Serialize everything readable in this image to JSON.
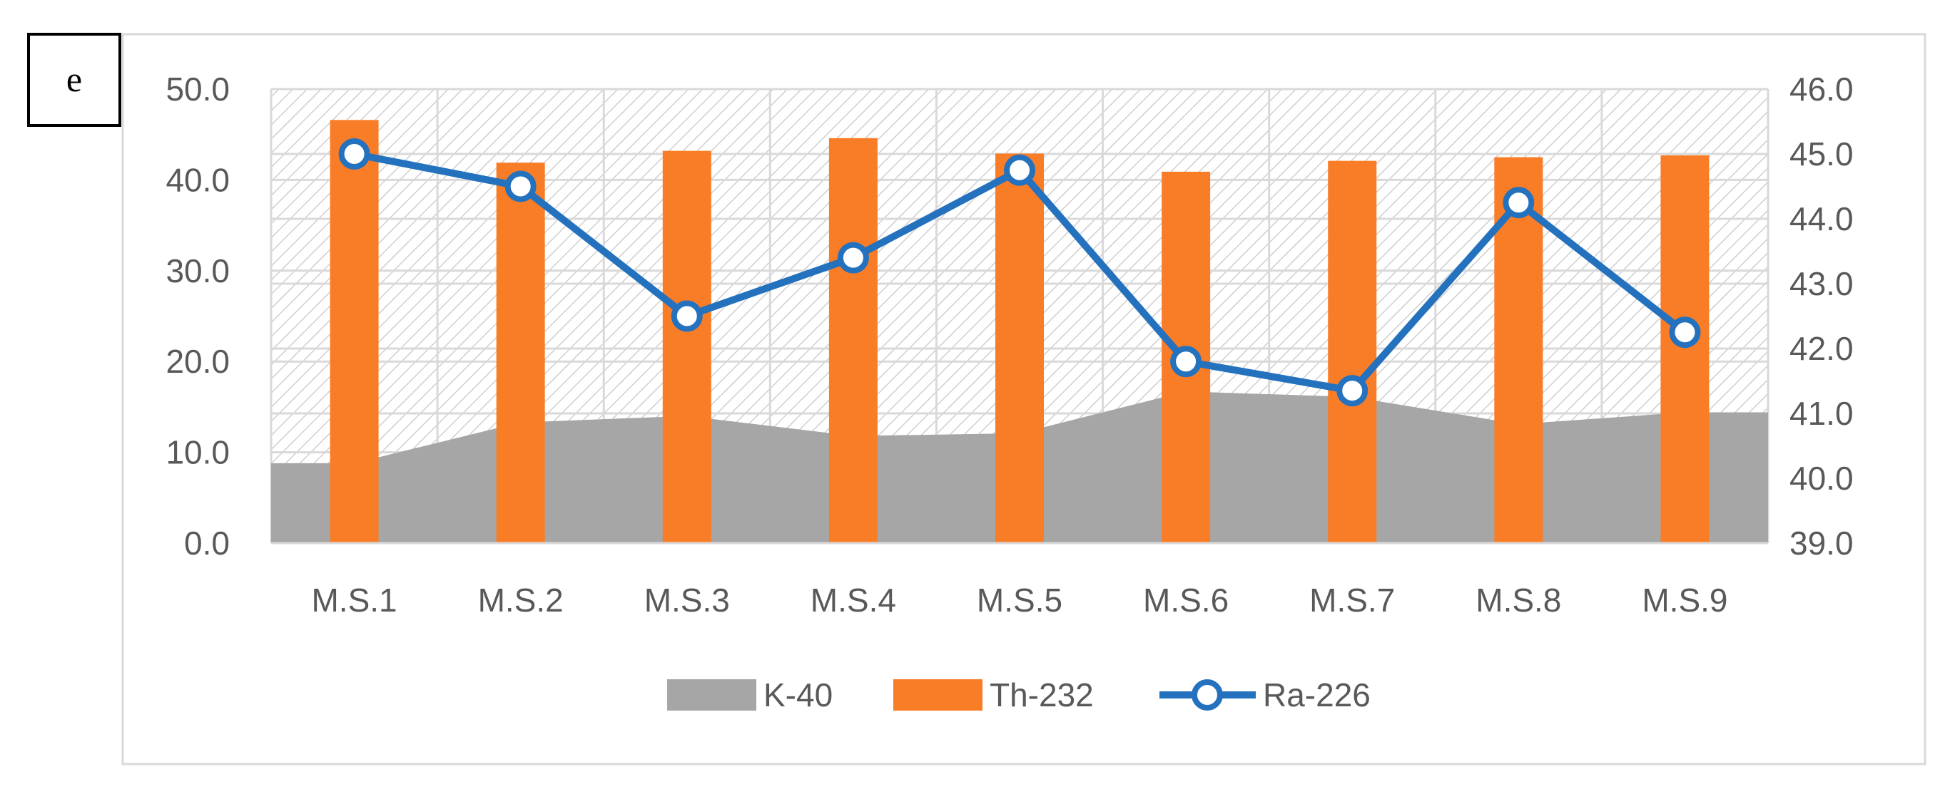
{
  "panel_label": "e",
  "chart_data": {
    "type": "bar",
    "title": "",
    "categories": [
      "M.S.1",
      "M.S.2",
      "M.S.3",
      "M.S.4",
      "M.S.5",
      "M.S.6",
      "M.S.7",
      "M.S.8",
      "M.S.9"
    ],
    "series": [
      {
        "name": "K-40",
        "type": "area",
        "axis": "left",
        "color": "#a6a6a6",
        "values": [
          8.8,
          13.3,
          14.0,
          11.8,
          12.1,
          16.7,
          16.1,
          13.1,
          14.4
        ]
      },
      {
        "name": "Th-232",
        "type": "bar",
        "axis": "left",
        "color": "#f97d27",
        "values": [
          46.6,
          41.9,
          43.2,
          44.6,
          42.9,
          40.9,
          42.1,
          42.5,
          42.7
        ]
      },
      {
        "name": "Ra-226",
        "type": "line",
        "axis": "right",
        "color": "#2471be",
        "values": [
          45.0,
          44.5,
          42.5,
          43.4,
          44.75,
          41.8,
          41.35,
          44.25,
          42.25
        ]
      }
    ],
    "y_left": {
      "range": [
        0,
        50
      ],
      "ticks": [
        "0.0",
        "10.0",
        "20.0",
        "30.0",
        "40.0",
        "50.0"
      ]
    },
    "y_right": {
      "range": [
        39,
        46
      ],
      "ticks": [
        "39.0",
        "40.0",
        "41.0",
        "42.0",
        "43.0",
        "44.0",
        "45.0",
        "46.0"
      ]
    },
    "xlabel": "",
    "ylabel": "",
    "grid": true,
    "legend_position": "bottom"
  }
}
